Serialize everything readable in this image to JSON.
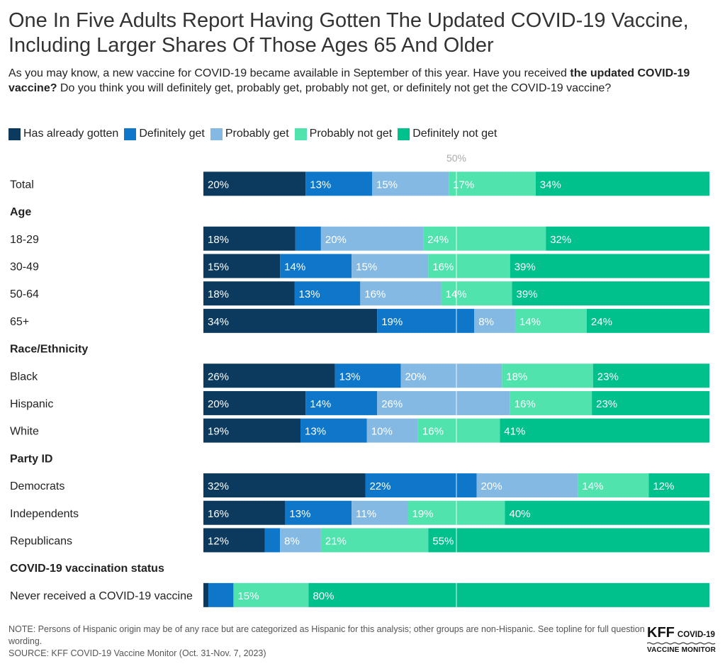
{
  "title": "One In Five Adults Report Having Gotten The Updated COVID-19 Vaccine, Including Larger Shares Of Those Ages 65 And Older",
  "subtitle": {
    "part1": "As you may know, a new vaccine for COVID-19 became available in September of this year. Have you received ",
    "bold": "the updated COVID-19 vaccine?",
    "part2": " Do you think you will definitely get, probably get, probably not get, or definitely not get the COVID-19 vaccine?"
  },
  "notes": {
    "note": "NOTE: Persons of Hispanic origin may be of any race but are categorized as Hispanic for this analysis; other groups are non-Hispanic. See topline for full question wording.",
    "source": "SOURCE: KFF COVID-19 Vaccine Monitor (Oct. 31-Nov. 7, 2023)"
  },
  "logo": {
    "brand": "KFF",
    "line1": "COVID-19",
    "line2": "VACCINE MONITOR"
  },
  "chart_data": {
    "type": "bar",
    "orientation": "horizontal",
    "stacked": true,
    "reference_line": {
      "value": 50,
      "label": "50%"
    },
    "xlim": [
      0,
      100
    ],
    "series": [
      {
        "name": "Has already gotten",
        "color": "#0b3a5e"
      },
      {
        "name": "Definitely get",
        "color": "#0e77c9"
      },
      {
        "name": "Probably get",
        "color": "#84b9e3"
      },
      {
        "name": "Probably not get",
        "color": "#50e3ad"
      },
      {
        "name": "Definitely not get",
        "color": "#00c08b"
      }
    ],
    "rows": [
      {
        "label": "Total",
        "values": [
          20,
          13,
          15,
          17,
          34
        ]
      },
      {
        "header": "Age"
      },
      {
        "label": "18-29",
        "values": [
          18,
          5,
          20,
          24,
          32
        ],
        "value_labels": [
          "18%",
          "",
          "20%",
          "24%",
          "32%"
        ]
      },
      {
        "label": "30-49",
        "values": [
          15,
          14,
          15,
          16,
          39
        ]
      },
      {
        "label": "50-64",
        "values": [
          18,
          13,
          16,
          14,
          39
        ]
      },
      {
        "label": "65+",
        "values": [
          34,
          19,
          8,
          14,
          24
        ]
      },
      {
        "header": "Race/Ethnicity"
      },
      {
        "label": "Black",
        "values": [
          26,
          13,
          20,
          18,
          23
        ]
      },
      {
        "label": "Hispanic",
        "values": [
          20,
          14,
          26,
          16,
          23
        ]
      },
      {
        "label": "White",
        "values": [
          19,
          13,
          10,
          16,
          41
        ]
      },
      {
        "header": "Party ID"
      },
      {
        "label": "Democrats",
        "values": [
          32,
          22,
          20,
          14,
          12
        ]
      },
      {
        "label": "Independents",
        "values": [
          16,
          13,
          11,
          19,
          40
        ]
      },
      {
        "label": "Republicans",
        "values": [
          12,
          3,
          8,
          21,
          55
        ],
        "value_labels": [
          "12%",
          "",
          "8%",
          "21%",
          "55%"
        ]
      },
      {
        "header": "COVID-19 vaccination status"
      },
      {
        "label": "Never received a COVID-19 vaccine",
        "values": [
          1,
          5,
          0,
          15,
          80
        ],
        "value_labels": [
          "",
          "",
          "",
          "15%",
          "80%"
        ]
      }
    ]
  }
}
